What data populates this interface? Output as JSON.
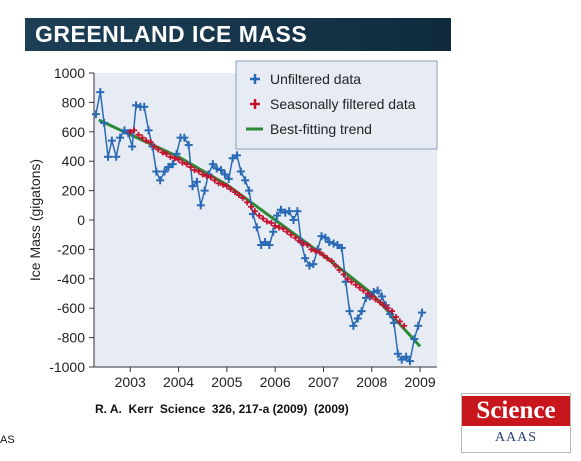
{
  "header": {
    "title": "GREENLAND ICE MASS"
  },
  "citation": "R. A.  Kerr  Science  326, 217-a (2009)  (2009)",
  "left_fragment": "AS",
  "logo": {
    "science": "Science",
    "aaas": "AAAS"
  },
  "colors": {
    "unfiltered": "#2a6ab4",
    "filtered": "#c4122f",
    "trend": "#2d8a38",
    "plot_bg": "#e6ebf4",
    "title_bg": "#163449"
  },
  "chart_data": {
    "type": "line",
    "xlabel": "",
    "ylabel": "Ice Mass (gigatons)",
    "xlim": [
      2002.25,
      2009.35
    ],
    "ylim": [
      -1000,
      1000
    ],
    "x_ticks": [
      2003,
      2004,
      2005,
      2006,
      2007,
      2008,
      2009
    ],
    "x_tick_labels": [
      "2003",
      "2004",
      "2005",
      "2006",
      "2007",
      "2008",
      "2009"
    ],
    "y_ticks": [
      1000,
      800,
      600,
      400,
      200,
      0,
      -200,
      -400,
      -600,
      -800,
      -1000
    ],
    "y_tick_labels": [
      "1000",
      "800",
      "600",
      "400",
      "200",
      "0",
      "-200",
      "-400",
      "-600",
      "-800",
      "-1000"
    ],
    "grid": false,
    "legend_position": "top-right",
    "legend": [
      "Unfiltered data",
      "Seasonally filtered data",
      "Best-fitting trend"
    ],
    "series": [
      {
        "name": "Unfiltered data",
        "style": "line-with-plus-markers",
        "x": [
          2002.29,
          2002.38,
          2002.46,
          2002.54,
          2002.62,
          2002.71,
          2002.79,
          2002.88,
          2002.96,
          2003.04,
          2003.12,
          2003.21,
          2003.29,
          2003.38,
          2003.46,
          2003.54,
          2003.62,
          2003.71,
          2003.79,
          2003.88,
          2003.96,
          2004.04,
          2004.12,
          2004.21,
          2004.29,
          2004.38,
          2004.46,
          2004.54,
          2004.62,
          2004.71,
          2004.79,
          2004.88,
          2004.96,
          2005.04,
          2005.12,
          2005.21,
          2005.29,
          2005.38,
          2005.46,
          2005.54,
          2005.62,
          2005.71,
          2005.79,
          2005.88,
          2005.96,
          2006.04,
          2006.12,
          2006.21,
          2006.29,
          2006.38,
          2006.46,
          2006.54,
          2006.62,
          2006.71,
          2006.79,
          2006.88,
          2006.96,
          2007.04,
          2007.12,
          2007.21,
          2007.29,
          2007.38,
          2007.46,
          2007.54,
          2007.62,
          2007.71,
          2007.79,
          2007.88,
          2007.96,
          2008.04,
          2008.12,
          2008.21,
          2008.29,
          2008.38,
          2008.46,
          2008.54,
          2008.62,
          2008.71,
          2008.79,
          2008.88,
          2008.96,
          2009.04
        ],
        "values": [
          720,
          870,
          660,
          430,
          540,
          430,
          560,
          610,
          590,
          500,
          780,
          770,
          770,
          610,
          500,
          330,
          270,
          330,
          360,
          380,
          450,
          560,
          560,
          510,
          230,
          260,
          100,
          200,
          310,
          380,
          350,
          340,
          310,
          280,
          420,
          440,
          330,
          270,
          200,
          40,
          -50,
          -170,
          -150,
          -170,
          -80,
          30,
          70,
          50,
          60,
          0,
          60,
          -150,
          -260,
          -310,
          -300,
          -200,
          -110,
          -120,
          -150,
          -160,
          -170,
          -190,
          -420,
          -620,
          -720,
          -670,
          -620,
          -530,
          -520,
          -490,
          -480,
          -520,
          -580,
          -640,
          -700,
          -910,
          -950,
          -930,
          -960,
          -810,
          -720,
          -630
        ]
      },
      {
        "name": "Seasonally filtered data",
        "style": "plus-markers",
        "x": [
          2003.0,
          2003.08,
          2003.17,
          2003.25,
          2003.33,
          2003.42,
          2003.5,
          2003.58,
          2003.67,
          2003.75,
          2003.83,
          2003.92,
          2004.0,
          2004.08,
          2004.17,
          2004.25,
          2004.33,
          2004.42,
          2004.5,
          2004.58,
          2004.67,
          2004.75,
          2004.83,
          2004.92,
          2005.0,
          2005.08,
          2005.17,
          2005.25,
          2005.33,
          2005.42,
          2005.5,
          2005.58,
          2005.67,
          2005.75,
          2005.83,
          2005.92,
          2006.0,
          2006.08,
          2006.17,
          2006.25,
          2006.33,
          2006.42,
          2006.5,
          2006.58,
          2006.67,
          2006.75,
          2006.83,
          2006.92,
          2007.0,
          2007.08,
          2007.17,
          2007.25,
          2007.33,
          2007.42,
          2007.5,
          2007.58,
          2007.67,
          2007.75,
          2007.83,
          2007.92,
          2008.0,
          2008.08,
          2008.17,
          2008.25,
          2008.33,
          2008.42,
          2008.5,
          2008.58,
          2008.67
        ],
        "values": [
          600,
          610,
          580,
          560,
          540,
          530,
          500,
          480,
          460,
          450,
          430,
          420,
          410,
          390,
          380,
          360,
          340,
          330,
          310,
          300,
          290,
          270,
          250,
          240,
          230,
          210,
          190,
          170,
          150,
          120,
          90,
          60,
          30,
          10,
          -10,
          -20,
          -40,
          -50,
          -60,
          -80,
          -100,
          -120,
          -140,
          -160,
          -170,
          -200,
          -210,
          -220,
          -240,
          -260,
          -280,
          -310,
          -340,
          -370,
          -400,
          -420,
          -440,
          -460,
          -480,
          -500,
          -520,
          -540,
          -560,
          -580,
          -600,
          -620,
          -660,
          -690,
          -720
        ]
      },
      {
        "name": "Best-fitting trend",
        "style": "line",
        "x": [
          2002.35,
          2003.0,
          2004.0,
          2005.0,
          2006.0,
          2007.0,
          2008.0,
          2009.0
        ],
        "values": [
          680,
          580,
          430,
          240,
          0,
          -240,
          -500,
          -860
        ]
      }
    ]
  }
}
